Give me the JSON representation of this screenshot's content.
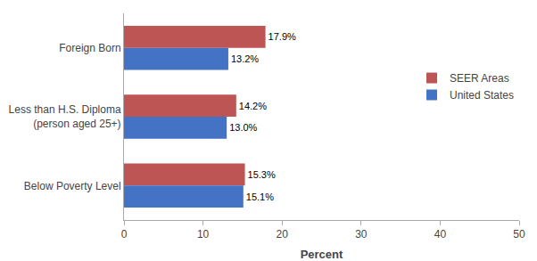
{
  "chart_data": {
    "type": "bar",
    "orientation": "horizontal",
    "categories": [
      "Foreign Born",
      "Less than H.S. Diploma\n(person aged 25+)",
      "Below Poverty Level"
    ],
    "series": [
      {
        "name": "SEER Areas",
        "color": "#BE5555",
        "values": [
          17.9,
          14.2,
          15.3
        ],
        "value_labels": [
          "17.9%",
          "14.2%",
          "15.3%"
        ]
      },
      {
        "name": "United States",
        "color": "#4472C4",
        "values": [
          13.2,
          13.0,
          15.1
        ],
        "value_labels": [
          "13.2%",
          "13.0%",
          "15.1%"
        ]
      }
    ],
    "xlabel": "Percent",
    "xlim": [
      0,
      50
    ],
    "xticks": [
      0,
      10,
      20,
      30,
      40,
      50
    ],
    "data_labels": true,
    "grid": false,
    "legend": "upper right"
  }
}
